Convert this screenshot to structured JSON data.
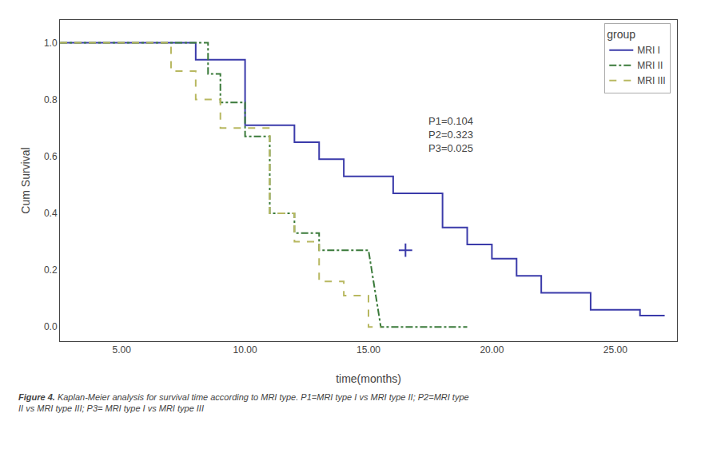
{
  "chart_data": {
    "type": "line",
    "xlabel": "time(months)",
    "ylabel": "Cum Survival",
    "xlim": [
      2.5,
      27.5
    ],
    "ylim": [
      -0.05,
      1.08
    ],
    "xticks": [
      {
        "value": 5.0,
        "label": "5.00"
      },
      {
        "value": 10.0,
        "label": "10.00"
      },
      {
        "value": 15.0,
        "label": "15.00"
      },
      {
        "value": 20.0,
        "label": "20.00"
      },
      {
        "value": 25.0,
        "label": "25.00"
      }
    ],
    "yticks": [
      {
        "value": 0.0,
        "label": "0.0"
      },
      0.2,
      0.4,
      0.6,
      0.8,
      {
        "value": 1.0,
        "label": "1.0"
      }
    ],
    "grid": false,
    "legend": "upper right",
    "legend_title": "group",
    "annotations": [
      "P1=0.104\nP2=0.323\nP3=0.025"
    ],
    "caption": {
      "bold": "Figure 4.",
      "text": "Kaplan-Meier analysis for survival time according to MRI type. P1=MRI type I vs MRI type II; P2=MRI type\nII vs MRI type III; P3= MRI type I vs MRI type III"
    },
    "series": [
      {
        "name": "MRI I",
        "color": "#3b3baa",
        "line_style": "solid",
        "x": [
          2.5,
          8,
          8,
          10,
          10,
          12,
          12,
          13,
          13,
          14,
          14,
          16,
          16,
          18,
          18,
          19,
          19,
          20,
          20,
          21,
          21,
          22,
          22,
          23,
          23,
          24,
          24,
          25,
          25,
          26,
          26,
          27
        ],
        "values": [
          1.0,
          1.0,
          0.94,
          0.94,
          0.71,
          0.71,
          0.65,
          0.65,
          0.59,
          0.59,
          0.53,
          0.53,
          0.47,
          0.47,
          0.35,
          0.35,
          0.29,
          0.29,
          0.24,
          0.24,
          0.18,
          0.18,
          0.12,
          0.12,
          0.12,
          0.12,
          0.06,
          0.06,
          0.06,
          0.06,
          0.04,
          0.04
        ]
      },
      {
        "name": "MRI II",
        "color": "#3a7a3a",
        "line_style": "dashdot",
        "x": [
          2.5,
          8.5,
          8.5,
          9,
          9,
          10,
          10,
          11,
          11,
          12,
          12,
          13,
          13,
          14,
          14,
          15,
          15,
          15.5,
          15.5,
          18,
          18,
          19
        ],
        "values": [
          1.0,
          1.0,
          0.89,
          0.89,
          0.79,
          0.79,
          0.67,
          0.67,
          0.4,
          0.4,
          0.33,
          0.33,
          0.27,
          0.27,
          0.27,
          0.27,
          0.27,
          0.0,
          0.0,
          0.0,
          0.0,
          0.0
        ]
      },
      {
        "name": "MRI III",
        "color": "#b8b860",
        "line_style": "dash",
        "x": [
          2.5,
          7,
          7,
          8,
          8,
          9,
          9,
          11,
          11,
          12,
          12,
          13,
          13,
          14,
          14,
          15,
          15,
          15.5
        ],
        "values": [
          1.0,
          1.0,
          0.9,
          0.9,
          0.8,
          0.8,
          0.7,
          0.7,
          0.4,
          0.4,
          0.3,
          0.3,
          0.16,
          0.16,
          0.11,
          0.11,
          0.0,
          0.0
        ]
      },
      {
        "type": "scatter",
        "marker": "plus",
        "color": "#3b3baa",
        "x": [
          16.5
        ],
        "values": [
          0.27
        ]
      }
    ]
  }
}
